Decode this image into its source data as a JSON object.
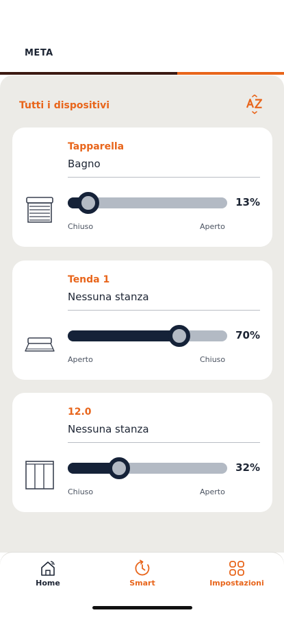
{
  "header": {
    "title": "META",
    "progress": 0.625
  },
  "section": {
    "title": "Tutti i dispositivi",
    "sort_icon": "sort-az-icon"
  },
  "devices": [
    {
      "name": "Tapparella",
      "room": "Bagno",
      "value_label": "13%",
      "value": 13,
      "left_label": "Chiuso",
      "right_label": "Aperto",
      "icon": "roller-shutter-icon"
    },
    {
      "name": "Tenda 1",
      "room": "Nessuna stanza",
      "value_label": "70%",
      "value": 70,
      "left_label": "Aperto",
      "right_label": "Chiuso",
      "icon": "awning-icon"
    },
    {
      "name": "12.0",
      "room": "Nessuna stanza",
      "value_label": "32%",
      "value": 32,
      "left_label": "Chiuso",
      "right_label": "Aperto",
      "icon": "vertical-blinds-icon"
    }
  ],
  "tabs": [
    {
      "label": "Home",
      "icon": "home-icon"
    },
    {
      "label": "Smart",
      "icon": "smart-clock-icon"
    },
    {
      "label": "Impostazioni",
      "icon": "settings-grid-icon"
    }
  ],
  "colors": {
    "accent": "#e8651b",
    "navy": "#152238",
    "track": "#b3bac4",
    "background": "#ecebe7"
  }
}
